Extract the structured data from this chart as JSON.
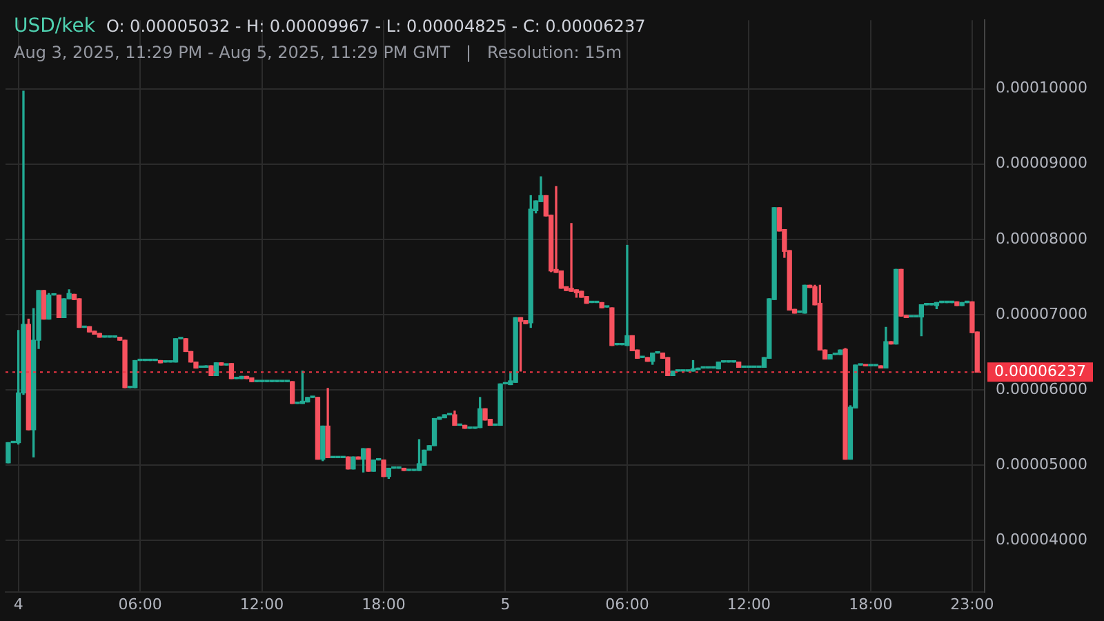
{
  "chart_data": {
    "type": "candlestick",
    "title": "USD/kek",
    "subtitle": "Aug 3, 2025, 11:29 PM - Aug 5, 2025, 11:29 PM GMT   |   Resolution: 15m",
    "annotations": [
      "O: 0.00005032 - H: 0.00009967 - L: 0.00004825 - C: 0.00006237"
    ],
    "xlim": [
      "2025-08-03T23:22",
      "2025-08-05T23:37"
    ],
    "xticks": [
      {
        "value": "2025-08-04T00:00",
        "label": "4"
      },
      {
        "value": "2025-08-04T06:00",
        "label": "06:00"
      },
      {
        "value": "2025-08-04T12:00",
        "label": "12:00"
      },
      {
        "value": "2025-08-04T18:00",
        "label": "18:00"
      },
      {
        "value": "2025-08-05T00:00",
        "label": "5"
      },
      {
        "value": "2025-08-05T06:00",
        "label": "06:00"
      },
      {
        "value": "2025-08-05T12:00",
        "label": "12:00"
      },
      {
        "value": "2025-08-05T18:00",
        "label": "18:00"
      },
      {
        "value": "2025-08-05T23:00",
        "label": "23:00"
      }
    ],
    "ylim": [
      3.32e-05,
      0.0001091
    ],
    "yticks": [
      {
        "value": 4e-05,
        "label": "0.00004000"
      },
      {
        "value": 5e-05,
        "label": "0.00005000"
      },
      {
        "value": 6e-05,
        "label": "0.00006000"
      },
      {
        "value": 7e-05,
        "label": "0.00007000"
      },
      {
        "value": 8e-05,
        "label": "0.00008000"
      },
      {
        "value": 9e-05,
        "label": "0.00009000"
      },
      {
        "value": 0.0001,
        "label": "0.00010000"
      }
    ],
    "grid": true,
    "ref_lines": [
      {
        "axis": "y",
        "value": 6.237e-05,
        "label": "0.00006237",
        "color": "#f23645",
        "line_style": "dotted"
      }
    ],
    "series": [
      {
        "x": [
          "2025-08-03T23:30",
          "2025-08-03T23:45",
          "2025-08-04T00:00",
          "2025-08-04T00:15",
          "2025-08-04T00:30",
          "2025-08-04T00:45",
          "2025-08-04T01:00",
          "2025-08-04T01:15",
          "2025-08-04T01:30",
          "2025-08-04T01:45",
          "2025-08-04T02:00",
          "2025-08-04T02:15",
          "2025-08-04T02:30",
          "2025-08-04T02:45",
          "2025-08-04T03:00",
          "2025-08-04T03:15",
          "2025-08-04T03:30",
          "2025-08-04T03:45",
          "2025-08-04T04:00",
          "2025-08-04T04:15",
          "2025-08-04T04:30",
          "2025-08-04T04:45",
          "2025-08-04T05:00",
          "2025-08-04T05:15",
          "2025-08-04T05:30",
          "2025-08-04T05:45",
          "2025-08-04T06:00",
          "2025-08-04T06:15",
          "2025-08-04T06:30",
          "2025-08-04T06:45",
          "2025-08-04T07:00",
          "2025-08-04T07:15",
          "2025-08-04T07:30",
          "2025-08-04T07:45",
          "2025-08-04T08:00",
          "2025-08-04T08:15",
          "2025-08-04T08:30",
          "2025-08-04T08:45",
          "2025-08-04T09:00",
          "2025-08-04T09:15",
          "2025-08-04T09:30",
          "2025-08-04T09:45",
          "2025-08-04T10:00",
          "2025-08-04T10:15",
          "2025-08-04T10:30",
          "2025-08-04T10:45",
          "2025-08-04T11:00",
          "2025-08-04T11:15",
          "2025-08-04T11:30",
          "2025-08-04T11:45",
          "2025-08-04T12:00",
          "2025-08-04T12:15",
          "2025-08-04T12:30",
          "2025-08-04T12:45",
          "2025-08-04T13:00",
          "2025-08-04T13:15",
          "2025-08-04T13:30",
          "2025-08-04T13:45",
          "2025-08-04T14:00",
          "2025-08-04T14:15",
          "2025-08-04T14:30",
          "2025-08-04T14:45",
          "2025-08-04T15:00",
          "2025-08-04T15:15",
          "2025-08-04T15:30",
          "2025-08-04T15:45",
          "2025-08-04T16:00",
          "2025-08-04T16:15",
          "2025-08-04T16:30",
          "2025-08-04T16:45",
          "2025-08-04T17:00",
          "2025-08-04T17:15",
          "2025-08-04T17:30",
          "2025-08-04T17:45",
          "2025-08-04T18:00",
          "2025-08-04T18:15",
          "2025-08-04T18:30",
          "2025-08-04T18:45",
          "2025-08-04T19:00",
          "2025-08-04T19:15",
          "2025-08-04T19:30",
          "2025-08-04T19:45",
          "2025-08-04T20:00",
          "2025-08-04T20:15",
          "2025-08-04T20:30",
          "2025-08-04T20:45",
          "2025-08-04T21:00",
          "2025-08-04T21:15",
          "2025-08-04T21:30",
          "2025-08-04T21:45",
          "2025-08-04T22:00",
          "2025-08-04T22:15",
          "2025-08-04T22:30",
          "2025-08-04T22:45",
          "2025-08-04T23:00",
          "2025-08-04T23:15",
          "2025-08-04T23:30",
          "2025-08-04T23:45",
          "2025-08-05T00:00",
          "2025-08-05T00:15",
          "2025-08-05T00:30",
          "2025-08-05T00:45",
          "2025-08-05T01:00",
          "2025-08-05T01:15",
          "2025-08-05T01:30",
          "2025-08-05T01:45",
          "2025-08-05T02:00",
          "2025-08-05T02:15",
          "2025-08-05T02:30",
          "2025-08-05T02:45",
          "2025-08-05T03:00",
          "2025-08-05T03:15",
          "2025-08-05T03:30",
          "2025-08-05T03:45",
          "2025-08-05T04:00",
          "2025-08-05T04:15",
          "2025-08-05T04:30",
          "2025-08-05T04:45",
          "2025-08-05T05:00",
          "2025-08-05T05:15",
          "2025-08-05T05:30",
          "2025-08-05T05:45",
          "2025-08-05T06:00",
          "2025-08-05T06:15",
          "2025-08-05T06:30",
          "2025-08-05T06:45",
          "2025-08-05T07:00",
          "2025-08-05T07:15",
          "2025-08-05T07:30",
          "2025-08-05T07:45",
          "2025-08-05T08:00",
          "2025-08-05T08:15",
          "2025-08-05T08:30",
          "2025-08-05T08:45",
          "2025-08-05T09:00",
          "2025-08-05T09:15",
          "2025-08-05T09:30",
          "2025-08-05T09:45",
          "2025-08-05T10:00",
          "2025-08-05T10:15",
          "2025-08-05T10:30",
          "2025-08-05T10:45",
          "2025-08-05T11:00",
          "2025-08-05T11:15",
          "2025-08-05T11:30",
          "2025-08-05T11:45",
          "2025-08-05T12:00",
          "2025-08-05T12:15",
          "2025-08-05T12:30",
          "2025-08-05T12:45",
          "2025-08-05T13:00",
          "2025-08-05T13:15",
          "2025-08-05T13:30",
          "2025-08-05T13:45",
          "2025-08-05T14:00",
          "2025-08-05T14:15",
          "2025-08-05T14:30",
          "2025-08-05T14:45",
          "2025-08-05T15:00",
          "2025-08-05T15:15",
          "2025-08-05T15:30",
          "2025-08-05T15:45",
          "2025-08-05T16:00",
          "2025-08-05T16:15",
          "2025-08-05T16:30",
          "2025-08-05T16:45",
          "2025-08-05T17:00",
          "2025-08-05T17:15",
          "2025-08-05T17:30",
          "2025-08-05T17:45",
          "2025-08-05T18:00",
          "2025-08-05T18:15",
          "2025-08-05T18:30",
          "2025-08-05T18:45",
          "2025-08-05T19:00",
          "2025-08-05T19:15",
          "2025-08-05T19:30",
          "2025-08-05T19:45",
          "2025-08-05T20:00",
          "2025-08-05T20:15",
          "2025-08-05T20:30",
          "2025-08-05T20:45",
          "2025-08-05T21:00",
          "2025-08-05T21:15",
          "2025-08-05T21:30",
          "2025-08-05T21:45",
          "2025-08-05T22:00",
          "2025-08-05T22:15",
          "2025-08-05T22:30",
          "2025-08-05T22:45",
          "2025-08-05T23:00",
          "2025-08-05T23:15"
        ],
        "ohlc": [
          [
            5.032e-05,
            5.3e-05,
            5.032e-05,
            5.3e-05
          ],
          [
            5.3e-05,
            5.3e-05,
            5.3e-05,
            5.3e-05
          ],
          [
            5.3e-05,
            6.79e-05,
            5.28e-05,
            5.96e-05
          ],
          [
            5.96e-05,
            9.967e-05,
            5.94e-05,
            6.87e-05
          ],
          [
            6.87e-05,
            6.94e-05,
            5.47e-05,
            5.47e-05
          ],
          [
            5.47e-05,
            7.08e-05,
            5.11e-05,
            6.66e-05
          ],
          [
            6.66e-05,
            7.32e-05,
            6.55e-05,
            7.32e-05
          ],
          [
            7.32e-05,
            7.32e-05,
            6.94e-05,
            6.94e-05
          ],
          [
            6.94e-05,
            7.28e-05,
            6.94e-05,
            7.26e-05
          ],
          [
            7.26e-05,
            7.26e-05,
            7.26e-05,
            7.26e-05
          ],
          [
            7.26e-05,
            7.26e-05,
            6.96e-05,
            6.96e-05
          ],
          [
            6.96e-05,
            7.21e-05,
            6.96e-05,
            7.21e-05
          ],
          [
            7.21e-05,
            7.33e-05,
            7.21e-05,
            7.28e-05
          ],
          [
            7.27e-05,
            7.27e-05,
            7.2e-05,
            7.2e-05
          ],
          [
            7.21e-05,
            7.21e-05,
            6.83e-05,
            6.83e-05
          ],
          [
            6.83e-05,
            6.83e-05,
            6.83e-05,
            6.83e-05
          ],
          [
            6.84e-05,
            6.84e-05,
            6.77e-05,
            6.77e-05
          ],
          [
            6.78e-05,
            6.78e-05,
            6.74e-05,
            6.74e-05
          ],
          [
            6.75e-05,
            6.75e-05,
            6.7e-05,
            6.7e-05
          ],
          [
            6.7e-05,
            6.7e-05,
            6.7e-05,
            6.7e-05
          ],
          [
            6.7e-05,
            6.7e-05,
            6.7e-05,
            6.7e-05
          ],
          [
            6.7e-05,
            6.7e-05,
            6.7e-05,
            6.7e-05
          ],
          [
            6.7e-05,
            6.7e-05,
            6.66e-05,
            6.66e-05
          ],
          [
            6.66e-05,
            6.66e-05,
            6.03e-05,
            6.03e-05
          ],
          [
            6.03e-05,
            6.03e-05,
            6.03e-05,
            6.03e-05
          ],
          [
            6.03e-05,
            6.39e-05,
            6.03e-05,
            6.39e-05
          ],
          [
            6.39e-05,
            6.39e-05,
            6.39e-05,
            6.39e-05
          ],
          [
            6.39e-05,
            6.39e-05,
            6.39e-05,
            6.39e-05
          ],
          [
            6.39e-05,
            6.39e-05,
            6.39e-05,
            6.39e-05
          ],
          [
            6.39e-05,
            6.39e-05,
            6.39e-05,
            6.39e-05
          ],
          [
            6.39e-05,
            6.39e-05,
            6.36e-05,
            6.36e-05
          ],
          [
            6.37e-05,
            6.37e-05,
            6.37e-05,
            6.37e-05
          ],
          [
            6.37e-05,
            6.37e-05,
            6.37e-05,
            6.37e-05
          ],
          [
            6.37e-05,
            6.68e-05,
            6.37e-05,
            6.68e-05
          ],
          [
            6.68e-05,
            6.68e-05,
            6.68e-05,
            6.68e-05
          ],
          [
            6.68e-05,
            6.68e-05,
            6.51e-05,
            6.51e-05
          ],
          [
            6.51e-05,
            6.51e-05,
            6.37e-05,
            6.37e-05
          ],
          [
            6.37e-05,
            6.37e-05,
            6.29e-05,
            6.29e-05
          ],
          [
            6.3e-05,
            6.3e-05,
            6.3e-05,
            6.3e-05
          ],
          [
            6.3e-05,
            6.32e-05,
            6.3e-05,
            6.32e-05
          ],
          [
            6.32e-05,
            6.32e-05,
            6.19e-05,
            6.19e-05
          ],
          [
            6.19e-05,
            6.36e-05,
            6.19e-05,
            6.36e-05
          ],
          [
            6.36e-05,
            6.36e-05,
            6.33e-05,
            6.33e-05
          ],
          [
            6.33e-05,
            6.33e-05,
            6.33e-05,
            6.33e-05
          ],
          [
            6.35e-05,
            6.35e-05,
            6.15e-05,
            6.15e-05
          ],
          [
            6.15e-05,
            6.15e-05,
            6.15e-05,
            6.15e-05
          ],
          [
            6.15e-05,
            6.18e-05,
            6.15e-05,
            6.18e-05
          ],
          [
            6.18e-05,
            6.18e-05,
            6.15e-05,
            6.15e-05
          ],
          [
            6.16e-05,
            6.16e-05,
            6.11e-05,
            6.11e-05
          ],
          [
            6.11e-05,
            6.11e-05,
            6.11e-05,
            6.11e-05
          ],
          [
            6.11e-05,
            6.11e-05,
            6.11e-05,
            6.11e-05
          ],
          [
            6.11e-05,
            6.11e-05,
            6.11e-05,
            6.11e-05
          ],
          [
            6.11e-05,
            6.11e-05,
            6.11e-05,
            6.11e-05
          ],
          [
            6.11e-05,
            6.11e-05,
            6.11e-05,
            6.11e-05
          ],
          [
            6.11e-05,
            6.11e-05,
            6.11e-05,
            6.11e-05
          ],
          [
            6.11e-05,
            6.11e-05,
            6.11e-05,
            6.11e-05
          ],
          [
            6.11e-05,
            6.11e-05,
            5.82e-05,
            5.82e-05
          ],
          [
            5.82e-05,
            5.82e-05,
            5.82e-05,
            5.82e-05
          ],
          [
            5.82e-05,
            6.25e-05,
            5.82e-05,
            5.85e-05
          ],
          [
            5.84e-05,
            5.9e-05,
            5.84e-05,
            5.9e-05
          ],
          [
            5.9e-05,
            5.9e-05,
            5.9e-05,
            5.9e-05
          ],
          [
            5.9e-05,
            5.9e-05,
            5.08e-05,
            5.08e-05
          ],
          [
            5.08e-05,
            5.52e-05,
            5.06e-05,
            5.52e-05
          ],
          [
            5.52e-05,
            6.02e-05,
            5.1e-05,
            5.1e-05
          ],
          [
            5.1e-05,
            5.1e-05,
            5.1e-05,
            5.1e-05
          ],
          [
            5.1e-05,
            5.1e-05,
            5.1e-05,
            5.1e-05
          ],
          [
            5.1e-05,
            5.1e-05,
            5.1e-05,
            5.1e-05
          ],
          [
            5.11e-05,
            5.11e-05,
            4.95e-05,
            4.95e-05
          ],
          [
            4.95e-05,
            5.11e-05,
            4.95e-05,
            5.11e-05
          ],
          [
            5.11e-05,
            5.11e-05,
            5.08e-05,
            5.08e-05
          ],
          [
            5.08e-05,
            5.22e-05,
            4.91e-05,
            5.22e-05
          ],
          [
            5.22e-05,
            5.22e-05,
            4.92e-05,
            4.92e-05
          ],
          [
            4.92e-05,
            5.07e-05,
            4.92e-05,
            5.07e-05
          ],
          [
            5.07e-05,
            5.07e-05,
            5.07e-05,
            5.07e-05
          ],
          [
            5.07e-05,
            5.07e-05,
            4.85e-05,
            4.85e-05
          ],
          [
            4.85e-05,
            4.96e-05,
            4.825e-05,
            4.96e-05
          ],
          [
            4.96e-05,
            4.96e-05,
            4.96e-05,
            4.96e-05
          ],
          [
            4.96e-05,
            4.96e-05,
            4.96e-05,
            4.96e-05
          ],
          [
            4.96e-05,
            4.96e-05,
            4.93e-05,
            4.93e-05
          ],
          [
            4.93e-05,
            4.93e-05,
            4.93e-05,
            4.93e-05
          ],
          [
            4.93e-05,
            4.93e-05,
            4.93e-05,
            4.93e-05
          ],
          [
            4.93e-05,
            5.34e-05,
            4.93e-05,
            5.02e-05
          ],
          [
            5e-05,
            5.2e-05,
            5e-05,
            5.2e-05
          ],
          [
            5.2e-05,
            5.26e-05,
            5.2e-05,
            5.26e-05
          ],
          [
            5.26e-05,
            5.62e-05,
            5.26e-05,
            5.62e-05
          ],
          [
            5.61e-05,
            5.64e-05,
            5.61e-05,
            5.64e-05
          ],
          [
            5.63e-05,
            5.67e-05,
            5.63e-05,
            5.67e-05
          ],
          [
            5.67e-05,
            5.67e-05,
            5.67e-05,
            5.67e-05
          ],
          [
            5.67e-05,
            5.72e-05,
            5.53e-05,
            5.53e-05
          ],
          [
            5.53e-05,
            5.53e-05,
            5.53e-05,
            5.53e-05
          ],
          [
            5.53e-05,
            5.53e-05,
            5.49e-05,
            5.49e-05
          ],
          [
            5.49e-05,
            5.49e-05,
            5.49e-05,
            5.49e-05
          ],
          [
            5.49e-05,
            5.49e-05,
            5.49e-05,
            5.49e-05
          ],
          [
            5.5e-05,
            5.9e-05,
            5.5e-05,
            5.75e-05
          ],
          [
            5.75e-05,
            5.75e-05,
            5.6e-05,
            5.6e-05
          ],
          [
            5.61e-05,
            5.61e-05,
            5.53e-05,
            5.53e-05
          ],
          [
            5.53e-05,
            5.53e-05,
            5.53e-05,
            5.53e-05
          ],
          [
            5.53e-05,
            6.08e-05,
            5.53e-05,
            6.08e-05
          ],
          [
            6.08e-05,
            6.08e-05,
            6.08e-05,
            6.08e-05
          ],
          [
            6.07e-05,
            6.22e-05,
            6.07e-05,
            6.12e-05
          ],
          [
            6.1e-05,
            6.96e-05,
            6.1e-05,
            6.96e-05
          ],
          [
            6.96e-05,
            6.96e-05,
            6.25e-05,
            6.91e-05
          ],
          [
            6.92e-05,
            6.92e-05,
            6.88e-05,
            6.88e-05
          ],
          [
            6.89e-05,
            8.58e-05,
            6.83e-05,
            8.4e-05
          ],
          [
            8.38e-05,
            8.51e-05,
            8.35e-05,
            8.51e-05
          ],
          [
            8.5e-05,
            8.83e-05,
            8.5e-05,
            8.58e-05
          ],
          [
            8.58e-05,
            8.58e-05,
            8.31e-05,
            8.31e-05
          ],
          [
            8.32e-05,
            8.32e-05,
            7.57e-05,
            7.58e-05
          ],
          [
            7.6e-05,
            8.7e-05,
            7.56e-05,
            7.56e-05
          ],
          [
            7.58e-05,
            7.58e-05,
            7.35e-05,
            7.35e-05
          ],
          [
            7.37e-05,
            7.37e-05,
            7.32e-05,
            7.32e-05
          ],
          [
            7.35e-05,
            8.21e-05,
            7.31e-05,
            7.31e-05
          ],
          [
            7.33e-05,
            7.33e-05,
            7.23e-05,
            7.29e-05
          ],
          [
            7.31e-05,
            7.31e-05,
            7.23e-05,
            7.23e-05
          ],
          [
            7.24e-05,
            7.24e-05,
            7.15e-05,
            7.15e-05
          ],
          [
            7.16e-05,
            7.16e-05,
            7.16e-05,
            7.16e-05
          ],
          [
            7.16e-05,
            7.16e-05,
            7.16e-05,
            7.16e-05
          ],
          [
            7.16e-05,
            7.16e-05,
            7.09e-05,
            7.09e-05
          ],
          [
            7.1e-05,
            7.1e-05,
            7.1e-05,
            7.1e-05
          ],
          [
            7.09e-05,
            7.09e-05,
            6.59e-05,
            6.59e-05
          ],
          [
            6.6e-05,
            6.6e-05,
            6.6e-05,
            6.6e-05
          ],
          [
            6.6e-05,
            6.6e-05,
            6.6e-05,
            6.6e-05
          ],
          [
            6.59e-05,
            7.92e-05,
            6.59e-05,
            6.72e-05
          ],
          [
            6.72e-05,
            6.72e-05,
            6.52e-05,
            6.52e-05
          ],
          [
            6.53e-05,
            6.53e-05,
            6.42e-05,
            6.42e-05
          ],
          [
            6.43e-05,
            6.43e-05,
            6.43e-05,
            6.43e-05
          ],
          [
            6.43e-05,
            6.43e-05,
            6.38e-05,
            6.38e-05
          ],
          [
            6.38e-05,
            6.49e-05,
            6.34e-05,
            6.49e-05
          ],
          [
            6.49e-05,
            6.49e-05,
            6.49e-05,
            6.49e-05
          ],
          [
            6.49e-05,
            6.49e-05,
            6.42e-05,
            6.42e-05
          ],
          [
            6.43e-05,
            6.43e-05,
            6.19e-05,
            6.19e-05
          ],
          [
            6.19e-05,
            6.25e-05,
            6.19e-05,
            6.25e-05
          ],
          [
            6.25e-05,
            6.25e-05,
            6.25e-05,
            6.25e-05
          ],
          [
            6.25e-05,
            6.25e-05,
            6.25e-05,
            6.25e-05
          ],
          [
            6.25e-05,
            6.25e-05,
            6.25e-05,
            6.25e-05
          ],
          [
            6.25e-05,
            6.39e-05,
            6.25e-05,
            6.28e-05
          ],
          [
            6.27e-05,
            6.29e-05,
            6.27e-05,
            6.29e-05
          ],
          [
            6.29e-05,
            6.29e-05,
            6.29e-05,
            6.29e-05
          ],
          [
            6.29e-05,
            6.29e-05,
            6.29e-05,
            6.29e-05
          ],
          [
            6.29e-05,
            6.29e-05,
            6.29e-05,
            6.29e-05
          ],
          [
            6.28e-05,
            6.37e-05,
            6.28e-05,
            6.37e-05
          ],
          [
            6.37e-05,
            6.37e-05,
            6.37e-05,
            6.37e-05
          ],
          [
            6.37e-05,
            6.37e-05,
            6.37e-05,
            6.37e-05
          ],
          [
            6.37e-05,
            6.37e-05,
            6.37e-05,
            6.37e-05
          ],
          [
            6.37e-05,
            6.37e-05,
            6.3e-05,
            6.3e-05
          ],
          [
            6.3e-05,
            6.3e-05,
            6.3e-05,
            6.3e-05
          ],
          [
            6.3e-05,
            6.3e-05,
            6.3e-05,
            6.3e-05
          ],
          [
            6.3e-05,
            6.3e-05,
            6.3e-05,
            6.3e-05
          ],
          [
            6.3e-05,
            6.3e-05,
            6.3e-05,
            6.3e-05
          ],
          [
            6.3e-05,
            6.43e-05,
            6.3e-05,
            6.43e-05
          ],
          [
            6.42e-05,
            7.21e-05,
            6.42e-05,
            7.21e-05
          ],
          [
            7.2e-05,
            8.42e-05,
            7.2e-05,
            8.42e-05
          ],
          [
            8.42e-05,
            8.42e-05,
            8.11e-05,
            8.11e-05
          ],
          [
            8.13e-05,
            8.13e-05,
            7.76e-05,
            7.84e-05
          ],
          [
            7.85e-05,
            7.85e-05,
            7.06e-05,
            7.06e-05
          ],
          [
            7.07e-05,
            7.07e-05,
            7.02e-05,
            7.02e-05
          ],
          [
            7.03e-05,
            7.03e-05,
            7.03e-05,
            7.03e-05
          ],
          [
            7.02e-05,
            7.39e-05,
            7.02e-05,
            7.39e-05
          ],
          [
            7.39e-05,
            7.39e-05,
            7.36e-05,
            7.36e-05
          ],
          [
            7.37e-05,
            7.39e-05,
            7.13e-05,
            7.13e-05
          ],
          [
            7.15e-05,
            7.39e-05,
            6.53e-05,
            6.53e-05
          ],
          [
            6.53e-05,
            6.53e-05,
            6.41e-05,
            6.41e-05
          ],
          [
            6.41e-05,
            6.47e-05,
            6.41e-05,
            6.47e-05
          ],
          [
            6.47e-05,
            6.47e-05,
            6.47e-05,
            6.47e-05
          ],
          [
            6.47e-05,
            6.53e-05,
            6.47e-05,
            6.53e-05
          ],
          [
            6.54e-05,
            6.55e-05,
            5.08e-05,
            5.08e-05
          ],
          [
            5.08e-05,
            5.79e-05,
            5.08e-05,
            5.77e-05
          ],
          [
            5.76e-05,
            6.33e-05,
            5.76e-05,
            6.33e-05
          ],
          [
            6.33e-05,
            6.33e-05,
            6.33e-05,
            6.33e-05
          ],
          [
            6.33e-05,
            6.33e-05,
            6.32e-05,
            6.32e-05
          ],
          [
            6.32e-05,
            6.32e-05,
            6.32e-05,
            6.32e-05
          ],
          [
            6.32e-05,
            6.32e-05,
            6.32e-05,
            6.32e-05
          ],
          [
            6.32e-05,
            6.32e-05,
            6.29e-05,
            6.29e-05
          ],
          [
            6.29e-05,
            6.83e-05,
            6.29e-05,
            6.64e-05
          ],
          [
            6.64e-05,
            6.64e-05,
            6.61e-05,
            6.61e-05
          ],
          [
            6.61e-05,
            7.6e-05,
            6.61e-05,
            7.6e-05
          ],
          [
            7.6e-05,
            7.6e-05,
            6.98e-05,
            6.98e-05
          ],
          [
            6.99e-05,
            6.99e-05,
            6.96e-05,
            6.96e-05
          ],
          [
            6.97e-05,
            6.97e-05,
            6.97e-05,
            6.97e-05
          ],
          [
            6.97e-05,
            6.97e-05,
            6.97e-05,
            6.97e-05
          ],
          [
            6.97e-05,
            7.13e-05,
            6.72e-05,
            7.13e-05
          ],
          [
            7.13e-05,
            7.13e-05,
            7.13e-05,
            7.13e-05
          ],
          [
            7.13e-05,
            7.13e-05,
            7.13e-05,
            7.13e-05
          ],
          [
            7.12e-05,
            7.16e-05,
            7.08e-05,
            7.16e-05
          ],
          [
            7.16e-05,
            7.16e-05,
            7.16e-05,
            7.16e-05
          ],
          [
            7.16e-05,
            7.16e-05,
            7.16e-05,
            7.16e-05
          ],
          [
            7.16e-05,
            7.16e-05,
            7.16e-05,
            7.16e-05
          ],
          [
            7.17e-05,
            7.17e-05,
            7.12e-05,
            7.12e-05
          ],
          [
            7.12e-05,
            7.16e-05,
            7.12e-05,
            7.16e-05
          ],
          [
            7.16e-05,
            7.16e-05,
            7.16e-05,
            7.16e-05
          ],
          [
            7.17e-05,
            7.17e-05,
            6.76e-05,
            6.76e-05
          ],
          [
            6.77e-05,
            6.77e-05,
            6.237e-05,
            6.237e-05
          ]
        ]
      }
    ]
  }
}
